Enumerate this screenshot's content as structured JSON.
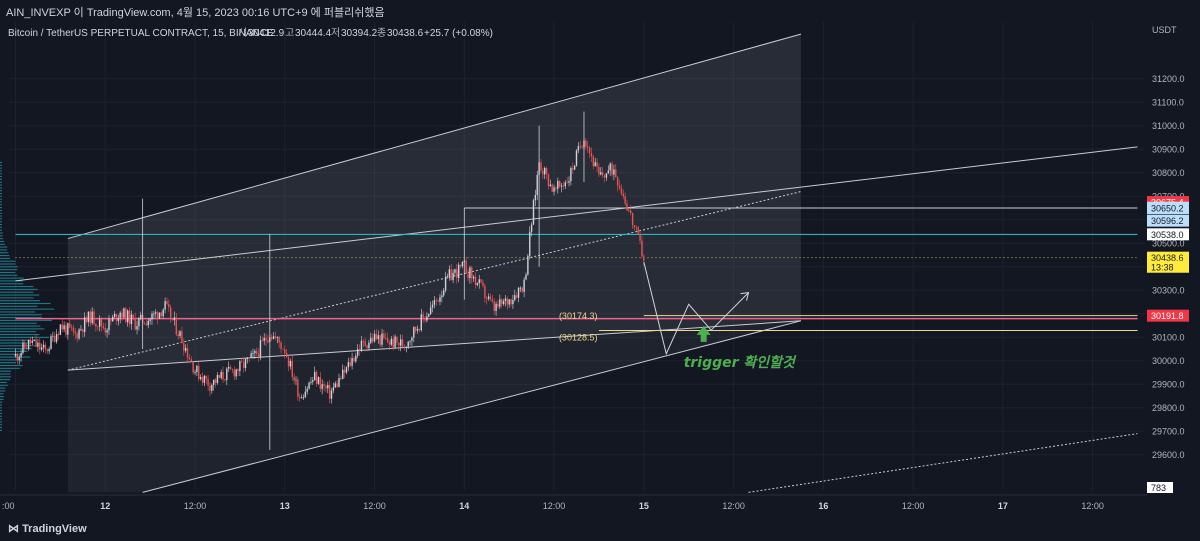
{
  "header": {
    "publisher": "AIN_INVEXP 이 TradingView.com, 4월 15, 2023 00:16 UTC+9 에 퍼블리쉬했음"
  },
  "symbol_line": {
    "name": "Bitcoin / TetherUS PERPETUAL CONTRACT, 15, BINANCE",
    "open_label": "시",
    "open": "30412.9",
    "high_label": "고",
    "high": "30444.4",
    "low_label": "저",
    "low": "30394.2",
    "close_label": "종",
    "close": "30438.6",
    "change": "+25.7 (+0.08%)"
  },
  "footer": {
    "logo": "TradingView"
  },
  "colors": {
    "background": "#131722",
    "up": "#cfd2d9",
    "down": "#ef5350",
    "channel": "#c9ccd4",
    "pink_line": "#f06292",
    "cyan_line": "#26c6da",
    "yellow_line": "#f5d78a",
    "annotation_green": "#4caf50"
  },
  "chart_data": {
    "type": "candlestick",
    "title": "Bitcoin / TetherUS PERPETUAL CONTRACT, 15, BINANCE",
    "currency": "USDT",
    "ylim": [
      29450,
      31450
    ],
    "y_ticks": [
      29600,
      29700,
      29800,
      29900,
      30000,
      30100,
      30200,
      30300,
      30400,
      30500,
      30600,
      30700,
      30800,
      30900,
      31000,
      31100,
      31200
    ],
    "x_range_hours": [
      0,
      84
    ],
    "x_ticks": [
      {
        "t": 0,
        "label": "12:00"
      },
      {
        "t": 12,
        "label": "12"
      },
      {
        "t": 24,
        "label": "12:00"
      },
      {
        "t": 36,
        "label": "13"
      },
      {
        "t": 48,
        "label": "12:00"
      },
      {
        "t": 60,
        "label": "14"
      },
      {
        "t": 72,
        "label": "12:00"
      },
      {
        "t": 84,
        "label": "15"
      },
      {
        "t": 96,
        "label": "12:00"
      },
      {
        "t": 108,
        "label": "16"
      },
      {
        "t": 120,
        "label": "12:00"
      },
      {
        "t": 132,
        "label": "17"
      },
      {
        "t": 144,
        "label": "12:00"
      }
    ],
    "axis_start_label": ":00",
    "price_path": [
      [
        0,
        30020
      ],
      [
        2,
        30080
      ],
      [
        4,
        30040
      ],
      [
        6,
        30150
      ],
      [
        8,
        30110
      ],
      [
        10,
        30190
      ],
      [
        12,
        30140
      ],
      [
        14,
        30210
      ],
      [
        16,
        30160
      ],
      [
        18,
        30180
      ],
      [
        20,
        30230
      ],
      [
        22,
        30110
      ],
      [
        24,
        29960
      ],
      [
        26,
        29900
      ],
      [
        28,
        29940
      ],
      [
        30,
        29970
      ],
      [
        32,
        30020
      ],
      [
        34,
        30120
      ],
      [
        36,
        30050
      ],
      [
        38,
        29850
      ],
      [
        40,
        29930
      ],
      [
        42,
        29860
      ],
      [
        44,
        29950
      ],
      [
        46,
        30060
      ],
      [
        48,
        30100
      ],
      [
        50,
        30080
      ],
      [
        52,
        30070
      ],
      [
        54,
        30160
      ],
      [
        56,
        30240
      ],
      [
        58,
        30360
      ],
      [
        60,
        30400
      ],
      [
        62,
        30320
      ],
      [
        64,
        30220
      ],
      [
        66,
        30260
      ],
      [
        68,
        30330
      ],
      [
        70,
        30850
      ],
      [
        72,
        30720
      ],
      [
        74,
        30780
      ],
      [
        76,
        30960
      ],
      [
        78,
        30780
      ],
      [
        80,
        30820
      ],
      [
        82,
        30640
      ],
      [
        84,
        30438
      ]
    ],
    "wicks": [
      {
        "t": 17,
        "high": 30690,
        "low": 30050
      },
      {
        "t": 34,
        "high": 30540,
        "low": 29620
      },
      {
        "t": 60,
        "high": 30650,
        "low": 30260
      },
      {
        "t": 70,
        "high": 31000,
        "low": 30400
      },
      {
        "t": 76,
        "high": 31060,
        "low": 30760
      }
    ],
    "channel": {
      "upper": {
        "t0": 7,
        "p0": 30520,
        "t1": 105,
        "p1": 31390
      },
      "lower": {
        "t0": 7,
        "p0": 29960,
        "t1": 105,
        "p1": 30170
      },
      "lower_outer": {
        "t0": 17,
        "p0": 29440,
        "t1": 105,
        "p1": 30170
      },
      "mid_dotted": {
        "t0": 7,
        "p0": 29960,
        "t1": 105,
        "p1": 30720
      }
    },
    "rising_line": {
      "t0": 0,
      "p0": 30340,
      "t1": 150,
      "p1": 30910
    },
    "dotted_low_line": {
      "t0": 98,
      "p0": 29440,
      "t1": 150,
      "p1": 29690
    },
    "hlines": [
      {
        "name": "pink",
        "price": 30179,
        "t0": 0,
        "t1": 150
      },
      {
        "name": "cyan",
        "price": 30538,
        "t0": 0,
        "t1": 150
      },
      {
        "name": "level-30650",
        "price": 30650,
        "t0": 60,
        "t1": 150
      },
      {
        "name": "level-30191",
        "price": 30191.8,
        "t0": 84,
        "t1": 150
      },
      {
        "name": "level-30128",
        "price": 30128.5,
        "t0": 78,
        "t1": 150
      },
      {
        "name": "dotted-close",
        "price": 30438.6,
        "t0": 0,
        "t1": 150
      }
    ],
    "level_labels": [
      {
        "text": "(30174.3)",
        "price": 30174.3,
        "t": 78
      },
      {
        "text": "(30128.5)",
        "price": 30128.5,
        "t": 78
      }
    ],
    "price_badges": [
      {
        "value": "30675.4",
        "price": 30675.4,
        "style": "red"
      },
      {
        "value": "30650.8",
        "price": 30650.8,
        "style": "white"
      },
      {
        "value": "30650.2",
        "price": 30650.2,
        "style": "light-blue"
      },
      {
        "value": "30596.2",
        "price": 30596.2,
        "style": "light-blue"
      },
      {
        "value": "30538.0",
        "price": 30538.0,
        "style": "white"
      },
      {
        "value": "30438.6",
        "price": 30438.6,
        "style": "yellow"
      },
      {
        "value": "13:38",
        "price": 30400,
        "style": "yellow"
      },
      {
        "value": "30191.8",
        "price": 30191.8,
        "style": "red"
      }
    ],
    "volume_badge": "783",
    "projection_path": [
      {
        "t": 84,
        "p": 30420
      },
      {
        "t": 87,
        "p": 30030
      },
      {
        "t": 90,
        "p": 30240
      },
      {
        "t": 93,
        "p": 30130
      },
      {
        "t": 98,
        "p": 30290
      }
    ],
    "annotation": {
      "text": "trigger 확인할것",
      "t": 90,
      "p": 30000
    },
    "arrow_up": {
      "t": 92,
      "p": 30110
    }
  }
}
